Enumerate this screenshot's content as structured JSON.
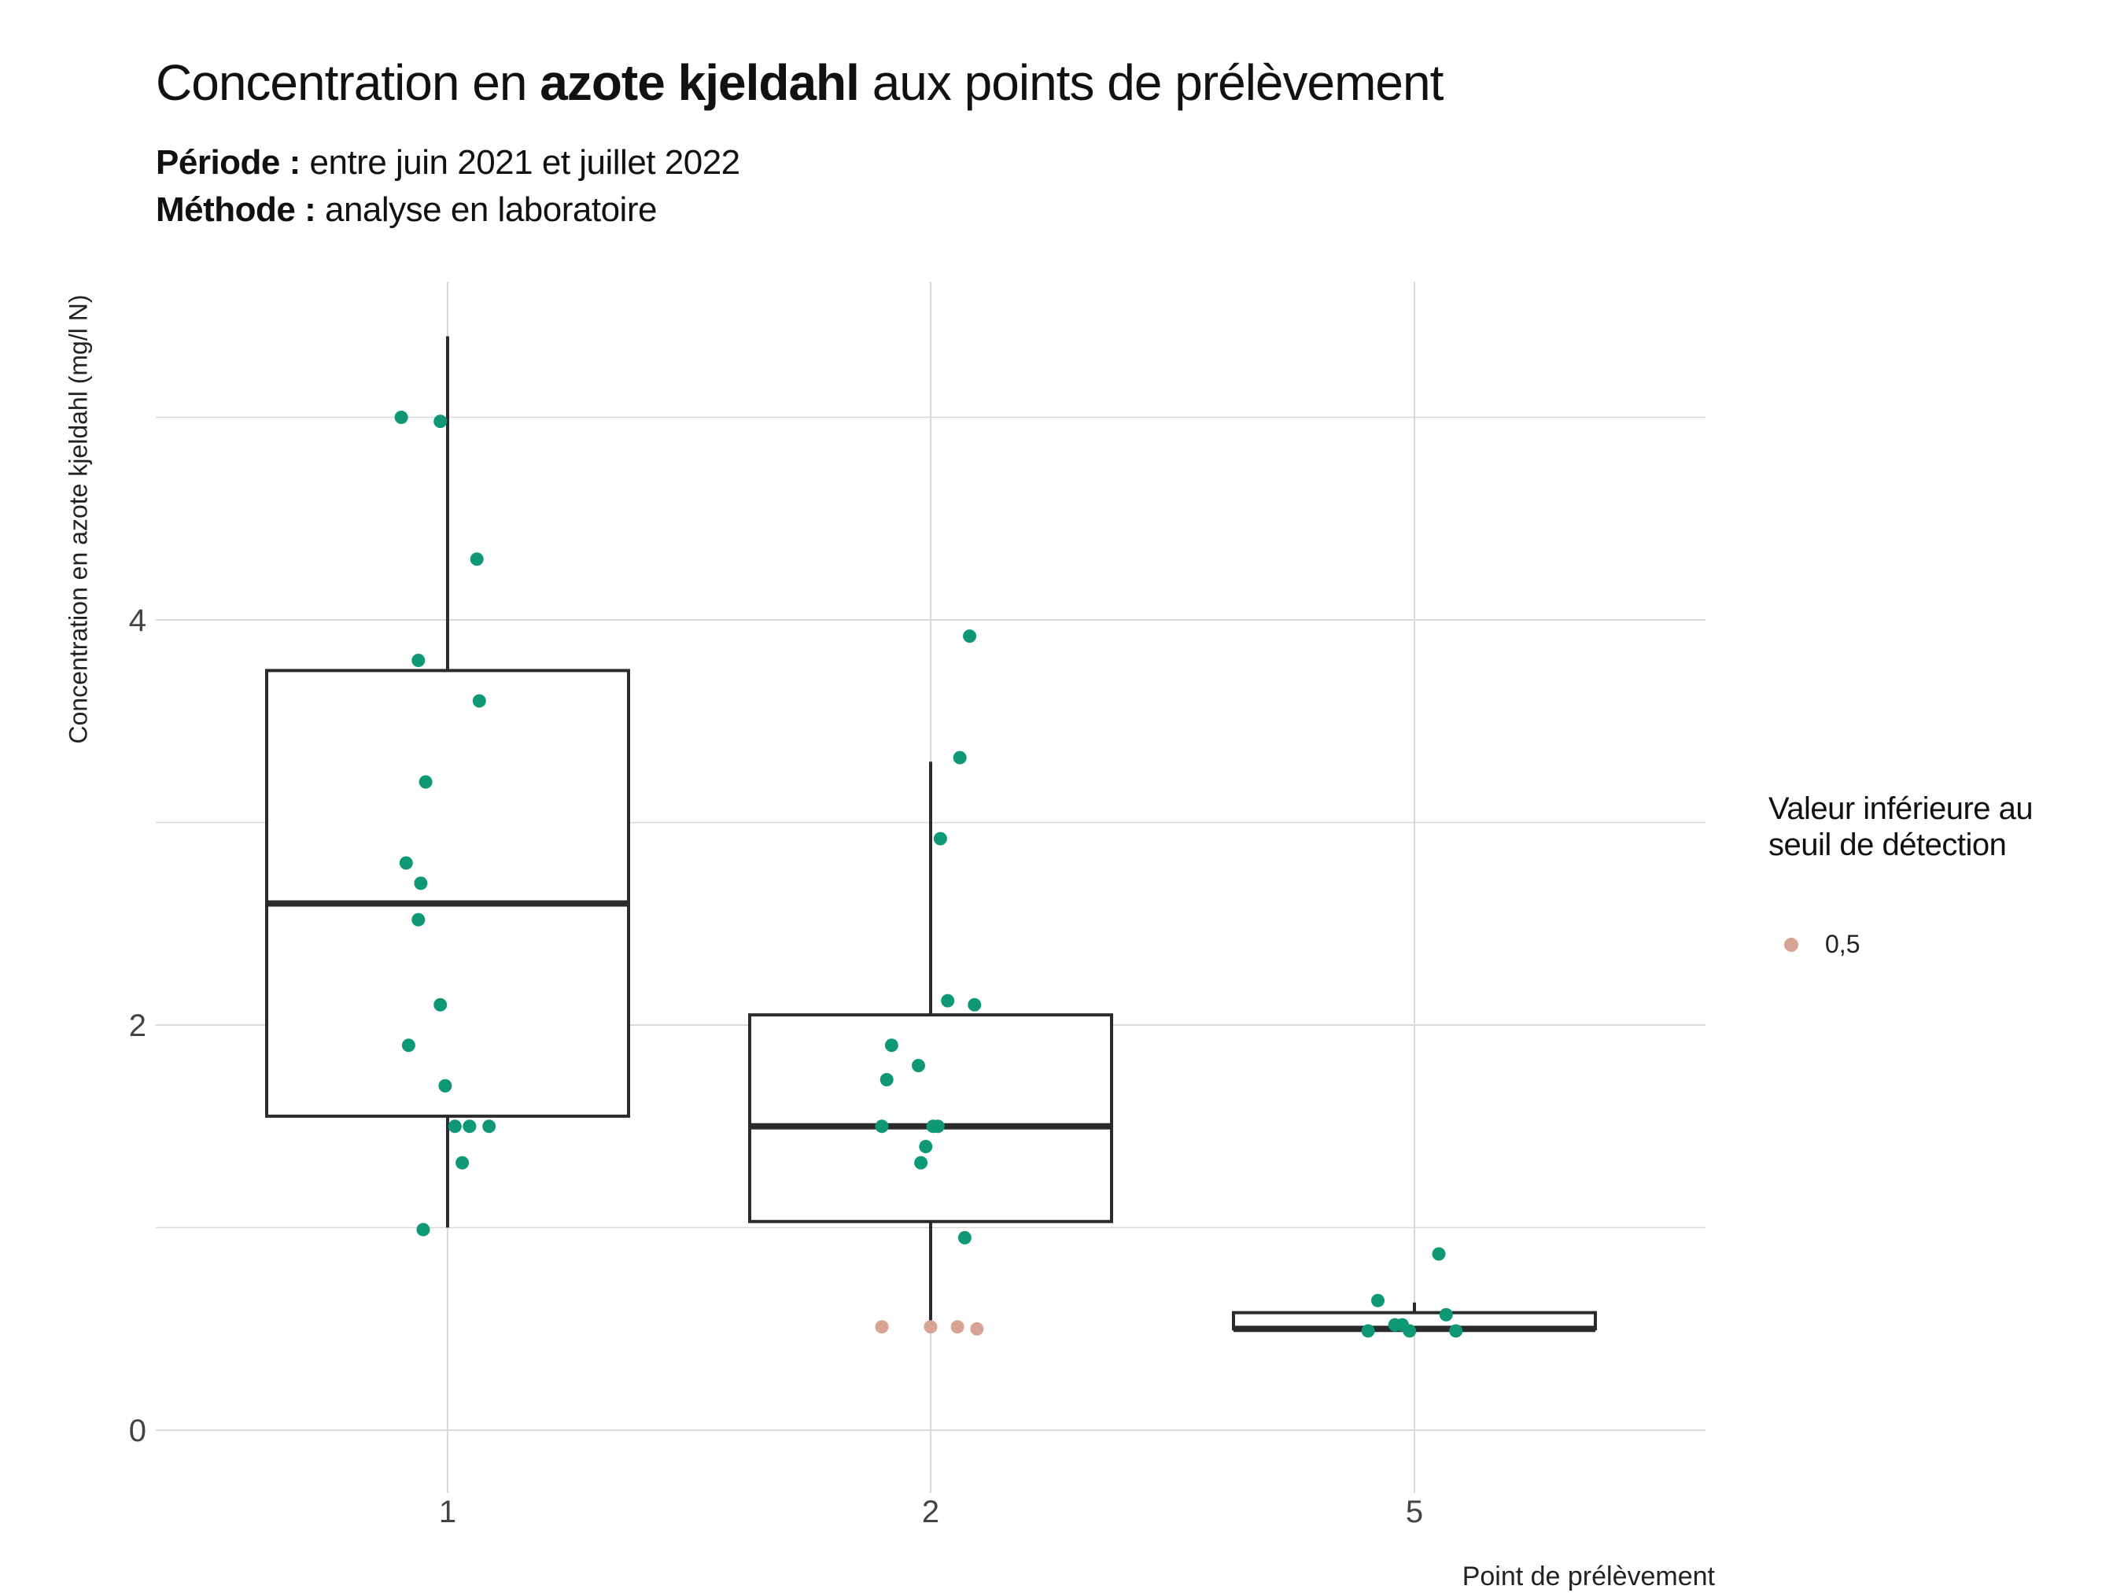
{
  "header": {
    "title_prefix": "Concentration en ",
    "title_bold": "azote kjeldahl",
    "title_suffix": " aux points de prélèvement",
    "period_label": "Période :",
    "period_value": " entre juin 2021 et juillet 2022",
    "method_label": "Méthode :",
    "method_value": " analyse en laboratoire"
  },
  "legend": {
    "title": "Valeur inférieure au seuil de détection",
    "items": [
      {
        "label": "0,5",
        "color": "#d9a393"
      }
    ]
  },
  "colors": {
    "detected": "#0f9875",
    "below_threshold": "#d9a393",
    "box": "#2b2b2b",
    "grid": "#d9d9d9"
  },
  "chart_data": {
    "type": "boxplot",
    "xlabel": "Point de prélèvement",
    "ylabel": "Concentration en azote kjeldahl (mg/l N)",
    "categories": [
      "1",
      "2",
      "5"
    ],
    "ylim": [
      -0.1,
      5.65
    ],
    "yticks": [
      0,
      2,
      4
    ],
    "yticks_labels": [
      "0",
      "2",
      "4"
    ],
    "grid": true,
    "legend_position": "right",
    "boxes": [
      {
        "category": "1",
        "whisker_low": 1.0,
        "q1": 1.55,
        "median": 2.6,
        "q3": 3.75,
        "whisker_high": 5.4
      },
      {
        "category": "2",
        "whisker_low": 0.5,
        "q1": 1.03,
        "median": 1.5,
        "q3": 2.05,
        "whisker_high": 3.3
      },
      {
        "category": "5",
        "whisker_low": 0.5,
        "q1": 0.5,
        "median": 0.5,
        "q3": 0.58,
        "whisker_high": 0.63
      }
    ],
    "points": [
      {
        "category": "1",
        "jitter": -0.19,
        "y": 5.0,
        "below_threshold": false
      },
      {
        "category": "1",
        "jitter": -0.03,
        "y": 4.98,
        "below_threshold": false
      },
      {
        "category": "1",
        "jitter": 0.12,
        "y": 4.3,
        "below_threshold": false
      },
      {
        "category": "1",
        "jitter": -0.12,
        "y": 3.8,
        "below_threshold": false
      },
      {
        "category": "1",
        "jitter": 0.13,
        "y": 3.6,
        "below_threshold": false
      },
      {
        "category": "1",
        "jitter": -0.09,
        "y": 3.2,
        "below_threshold": false
      },
      {
        "category": "1",
        "jitter": -0.17,
        "y": 2.8,
        "below_threshold": false
      },
      {
        "category": "1",
        "jitter": -0.11,
        "y": 2.7,
        "below_threshold": false
      },
      {
        "category": "1",
        "jitter": -0.12,
        "y": 2.52,
        "below_threshold": false
      },
      {
        "category": "1",
        "jitter": -0.03,
        "y": 2.1,
        "below_threshold": false
      },
      {
        "category": "1",
        "jitter": -0.16,
        "y": 1.9,
        "below_threshold": false
      },
      {
        "category": "1",
        "jitter": -0.01,
        "y": 1.7,
        "below_threshold": false
      },
      {
        "category": "1",
        "jitter": 0.03,
        "y": 1.5,
        "below_threshold": false
      },
      {
        "category": "1",
        "jitter": 0.09,
        "y": 1.5,
        "below_threshold": false
      },
      {
        "category": "1",
        "jitter": 0.17,
        "y": 1.5,
        "below_threshold": false
      },
      {
        "category": "1",
        "jitter": 0.06,
        "y": 1.32,
        "below_threshold": false
      },
      {
        "category": "1",
        "jitter": -0.1,
        "y": 0.99,
        "below_threshold": false
      },
      {
        "category": "2",
        "jitter": 0.16,
        "y": 3.92,
        "below_threshold": false
      },
      {
        "category": "2",
        "jitter": 0.12,
        "y": 3.32,
        "below_threshold": false
      },
      {
        "category": "2",
        "jitter": 0.04,
        "y": 2.92,
        "below_threshold": false
      },
      {
        "category": "2",
        "jitter": 0.07,
        "y": 2.12,
        "below_threshold": false
      },
      {
        "category": "2",
        "jitter": 0.18,
        "y": 2.1,
        "below_threshold": false
      },
      {
        "category": "2",
        "jitter": -0.16,
        "y": 1.9,
        "below_threshold": false
      },
      {
        "category": "2",
        "jitter": -0.05,
        "y": 1.8,
        "below_threshold": false
      },
      {
        "category": "2",
        "jitter": -0.18,
        "y": 1.73,
        "below_threshold": false
      },
      {
        "category": "2",
        "jitter": -0.2,
        "y": 1.5,
        "below_threshold": false
      },
      {
        "category": "2",
        "jitter": 0.01,
        "y": 1.5,
        "below_threshold": false
      },
      {
        "category": "2",
        "jitter": 0.03,
        "y": 1.5,
        "below_threshold": false
      },
      {
        "category": "2",
        "jitter": -0.02,
        "y": 1.4,
        "below_threshold": false
      },
      {
        "category": "2",
        "jitter": -0.04,
        "y": 1.32,
        "below_threshold": false
      },
      {
        "category": "2",
        "jitter": 0.14,
        "y": 0.95,
        "below_threshold": false
      },
      {
        "category": "2",
        "jitter": -0.2,
        "y": 0.51,
        "below_threshold": true
      },
      {
        "category": "2",
        "jitter": 0.0,
        "y": 0.51,
        "below_threshold": true
      },
      {
        "category": "2",
        "jitter": 0.11,
        "y": 0.51,
        "below_threshold": true
      },
      {
        "category": "2",
        "jitter": 0.19,
        "y": 0.5,
        "below_threshold": true
      },
      {
        "category": "5",
        "jitter": 0.1,
        "y": 0.87,
        "below_threshold": false
      },
      {
        "category": "5",
        "jitter": -0.15,
        "y": 0.64,
        "below_threshold": false
      },
      {
        "category": "5",
        "jitter": 0.13,
        "y": 0.57,
        "below_threshold": false
      },
      {
        "category": "5",
        "jitter": -0.08,
        "y": 0.52,
        "below_threshold": false
      },
      {
        "category": "5",
        "jitter": -0.05,
        "y": 0.52,
        "below_threshold": false
      },
      {
        "category": "5",
        "jitter": -0.19,
        "y": 0.49,
        "below_threshold": false
      },
      {
        "category": "5",
        "jitter": -0.02,
        "y": 0.49,
        "below_threshold": false
      },
      {
        "category": "5",
        "jitter": 0.17,
        "y": 0.49,
        "below_threshold": false
      }
    ]
  }
}
